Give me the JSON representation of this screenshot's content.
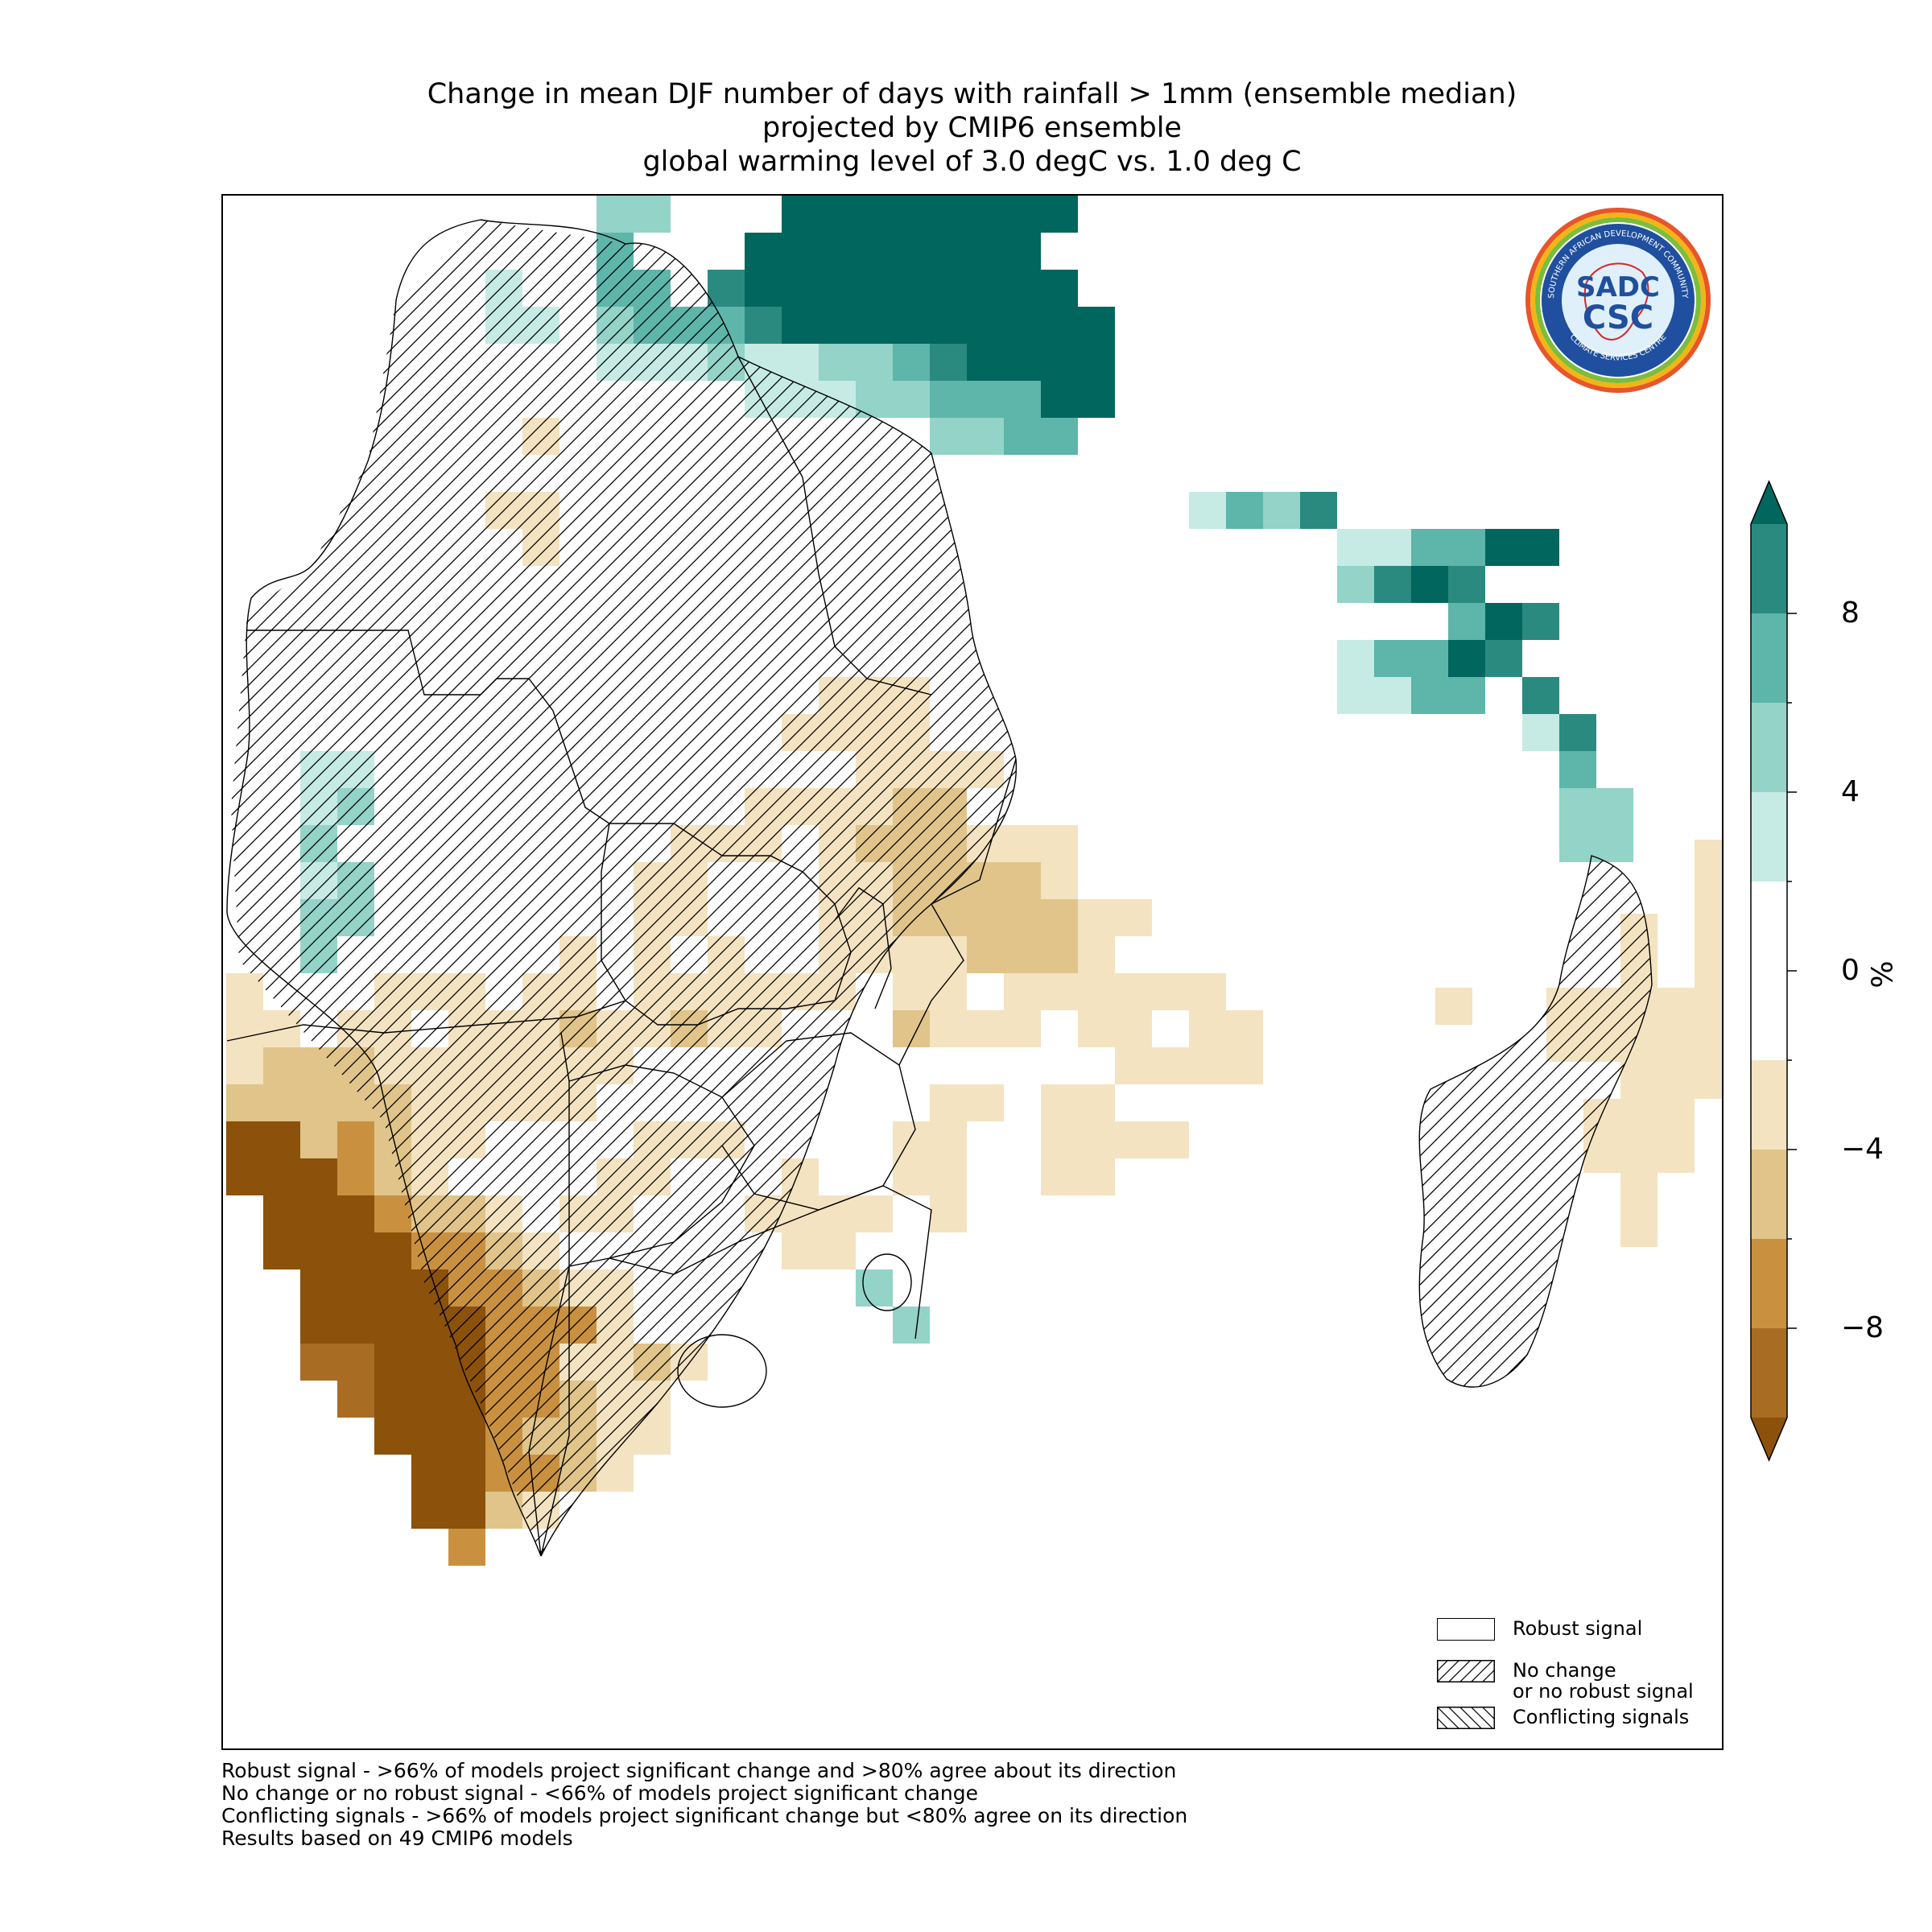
{
  "title": {
    "line1": "Change in mean DJF number of days with rainfall > 1mm (ensemble median)",
    "line2": "projected by CMIP6 ensemble",
    "line3": "global warming level of 3.0 degC vs. 1.0 deg C"
  },
  "logo": {
    "ring_text_top": "SOUTHERN AFRICAN DEVELOPMENT COMMUNITY",
    "ring_text_bottom": "CLIMATE SERVICES CENTRE",
    "center_top": "SADC",
    "center_bottom": "CSC"
  },
  "legend": {
    "robust": "Robust signal",
    "no_change_line1": "No change",
    "no_change_line2": "or no robust signal",
    "conflicting": "Conflicting signals"
  },
  "colorbar": {
    "ticks": [
      {
        "label": "8",
        "value": 8
      },
      {
        "label": "4",
        "value": 4
      },
      {
        "label": "0",
        "value": 0
      },
      {
        "label": "−4",
        "value": -4
      },
      {
        "label": "−8",
        "value": -8
      }
    ],
    "unit": "%",
    "range": [
      -10,
      10
    ],
    "extend": "both",
    "bins": [
      {
        "from": 8,
        "to": 10,
        "color": "#2a8a80"
      },
      {
        "from": 6,
        "to": 8,
        "color": "#5eb5aa"
      },
      {
        "from": 4,
        "to": 6,
        "color": "#93d3c8"
      },
      {
        "from": 2,
        "to": 4,
        "color": "#c6ebe5"
      },
      {
        "from": -2,
        "to": 2,
        "color": "#ffffff"
      },
      {
        "from": -4,
        "to": -2,
        "color": "#f4e3c1"
      },
      {
        "from": -6,
        "to": -4,
        "color": "#e0c48a"
      },
      {
        "from": -8,
        "to": -6,
        "color": "#c9913f"
      },
      {
        "from": -10,
        "to": -8,
        "color": "#a86d23"
      }
    ],
    "over_color": "#01665e",
    "under_color": "#8c510a"
  },
  "map": {
    "palette": {
      "a": "#01665e",
      "b": "#2a8a80",
      "c": "#5eb5aa",
      "d": "#93d3c8",
      "e": "#c6ebe5",
      "f": "#f4e3c1",
      "g": "#e0c48a",
      "h": "#c9913f",
      "i": "#a86d23",
      "j": "#8c510a"
    }
  },
  "footnotes": [
    "Robust signal - >66% of models project significant change and >80% agree about its direction",
    "No change or no robust signal - <66% of models project significant change",
    "Conflicting signals - >66% of models project significant change but <80% agree on its direction",
    "Results based on 49 CMIP6 models"
  ]
}
